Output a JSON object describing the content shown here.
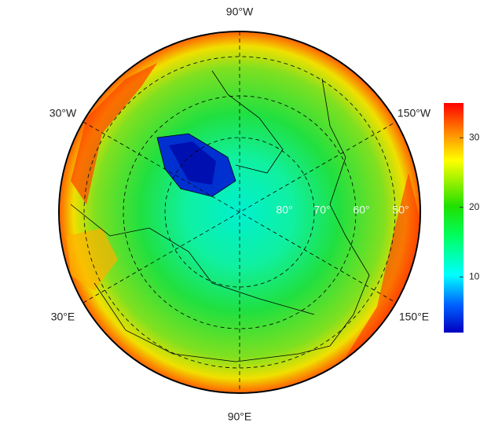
{
  "map": {
    "longitude_labels": [
      "90°W",
      "30°W",
      "150°W",
      "30°E",
      "150°E",
      "90°E"
    ],
    "latitude_labels": [
      "80°",
      "70°",
      "60°",
      "50°"
    ]
  },
  "colorbar": {
    "ylim": [
      2,
      35
    ],
    "yticks": [
      10,
      20,
      30
    ]
  }
}
